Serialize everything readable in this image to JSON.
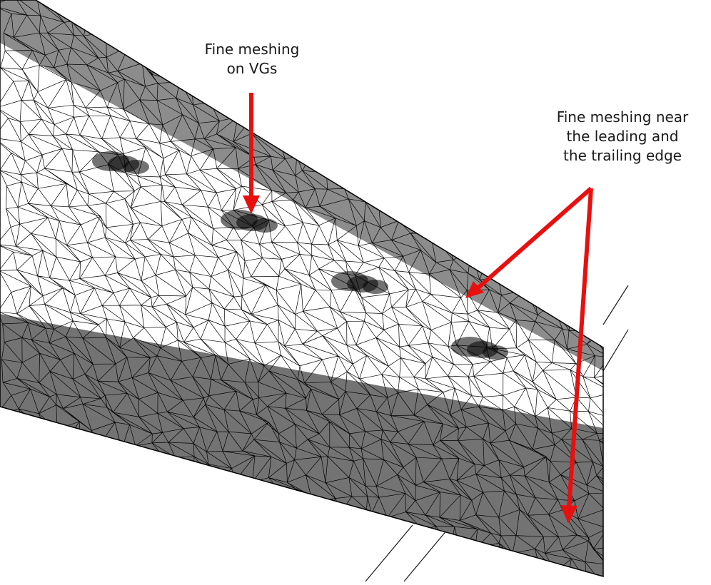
{
  "annotations": {
    "vg": {
      "lines": [
        "Fine meshing",
        "on VGs"
      ]
    },
    "edges": {
      "lines": [
        "Fine meshing near",
        "the leading and",
        "the trailing edge"
      ]
    }
  },
  "colors": {
    "background": "#ffffff",
    "mesh_line": "#000000",
    "arrow": "#e8100f",
    "guide_line": "#1a1a1a"
  },
  "regions": {
    "vortex_generators": {
      "count": 4
    },
    "dense_edge_bands": [
      "leading-edge",
      "trailing-edge"
    ]
  }
}
